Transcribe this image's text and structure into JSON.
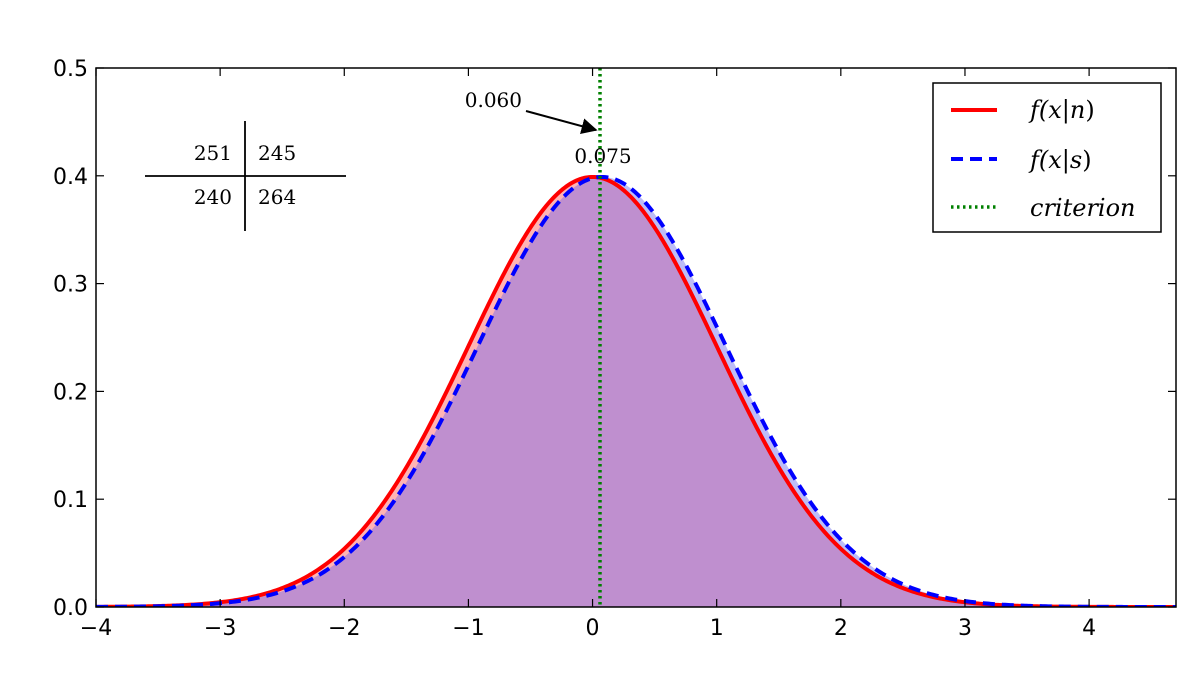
{
  "chart_data": {
    "type": "line",
    "title": "",
    "xlabel": "",
    "ylabel": "",
    "xlim": [
      -4,
      4.7
    ],
    "ylim": [
      0,
      0.5
    ],
    "x_ticks": [
      -4,
      -3,
      -2,
      -1,
      0,
      1,
      2,
      3,
      4
    ],
    "x_tick_labels": [
      "−4",
      "−3",
      "−2",
      "−1",
      "0",
      "1",
      "2",
      "3",
      "4"
    ],
    "y_ticks": [
      0,
      0.1,
      0.2,
      0.3,
      0.4,
      0.5
    ],
    "y_tick_labels": [
      "0.0",
      "0.1",
      "0.2",
      "0.3",
      "0.4",
      "0.5"
    ],
    "series": [
      {
        "name": "f(x|n)",
        "kind": "normal-pdf",
        "mean": 0.0,
        "sd": 1.0,
        "color": "#ff0000",
        "linestyle": "solid",
        "fill": "#ff6a6a"
      },
      {
        "name": "f(x|s)",
        "kind": "normal-pdf",
        "mean": 0.075,
        "sd": 1.0,
        "color": "#0000ff",
        "linestyle": "dashed",
        "fill": "#7b7bf0"
      }
    ],
    "overlap_fill": "#bf8fcf",
    "criterion": {
      "name": "criterion",
      "x": 0.06,
      "color": "#008000",
      "linestyle": "dotted"
    },
    "annotations": [
      {
        "text": "0.060",
        "target_x": 0.06,
        "target_y": 0.44,
        "arrow": true
      },
      {
        "text": "0.075",
        "at_x": 0.075,
        "at_y": 0.4
      }
    ],
    "contingency_table": {
      "cells": [
        [
          "251",
          "245"
        ],
        [
          "240",
          "264"
        ]
      ]
    },
    "legend": {
      "position": "top-right",
      "entries": [
        {
          "label": "f(x|n)",
          "label_main": "f(x",
          "label_cond": "n",
          "color": "#ff0000",
          "style": "solid"
        },
        {
          "label": "f(x|s)",
          "label_main": "f(x",
          "label_cond": "s",
          "color": "#0000ff",
          "style": "dashed"
        },
        {
          "label": "criterion",
          "color": "#008000",
          "style": "dotted"
        }
      ]
    }
  }
}
